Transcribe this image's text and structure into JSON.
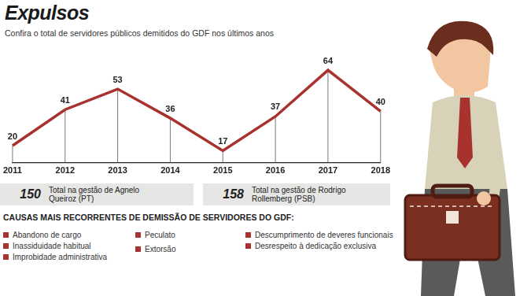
{
  "chart_data": {
    "type": "line",
    "title": "Expulsos",
    "subtitle": "Confira o total de servidores públicos demitidos do GDF nos últimos anos",
    "categories": [
      "2011",
      "2012",
      "2013",
      "2014",
      "2015",
      "2016",
      "2017",
      "2018"
    ],
    "values": [
      20,
      41,
      53,
      36,
      17,
      37,
      64,
      40
    ],
    "color": "#a8322d",
    "data_labels": true,
    "tick_labels": "x",
    "grid": false
  },
  "totals": [
    {
      "value": 150,
      "label": "Total na gestão de Agnelo Queiroz (PT)"
    },
    {
      "value": 158,
      "label": "Total na gestão de Rodrigo Rollemberg (PSB)"
    }
  ],
  "causes": {
    "title": "CAUSAS MAIS RECORRENTES DE DEMISSÃO DE SERVIDORES DO GDF:",
    "columns": [
      [
        "Abandono de cargo",
        "Inassiduidade habitual",
        "Improbidade administrativa"
      ],
      [
        "Peculato",
        "Extorsão"
      ],
      [
        "Descumprimento de deveres funcionais",
        "Desrespeito à dedicação exclusiva"
      ]
    ]
  }
}
